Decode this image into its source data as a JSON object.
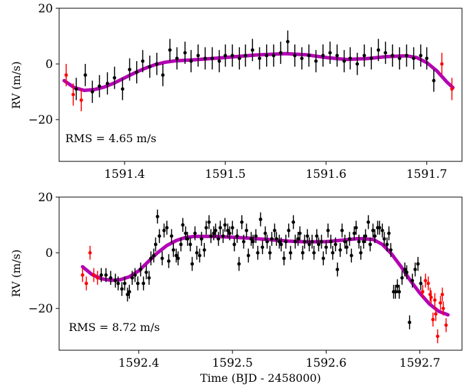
{
  "chart_data": [
    {
      "type": "scatter",
      "ylabel": "RV (m/s)",
      "xlabel": "",
      "xlim": [
        1591.335,
        1591.735
      ],
      "ylim": [
        -35,
        20
      ],
      "xticks": [
        1591.4,
        1591.5,
        1591.6,
        1591.7
      ],
      "xtick_labels": [
        "1591.4",
        "1591.5",
        "1591.6",
        "1591.7"
      ],
      "yticks": [
        -20,
        0,
        20
      ],
      "ytick_labels": [
        "−20",
        "0",
        "20"
      ],
      "annotation": "RMS = 4.65 m/s",
      "colors": {
        "in_transit": "#000000",
        "out_of_transit": "#ff0000",
        "model": "#b300b3"
      },
      "points_black": [
        [
          1591.352,
          -9,
          4
        ],
        [
          1591.361,
          -4,
          4
        ],
        [
          1591.368,
          -10,
          4
        ],
        [
          1591.375,
          -8,
          4
        ],
        [
          1591.383,
          -7,
          4
        ],
        [
          1591.39,
          -5,
          4
        ],
        [
          1591.398,
          -9,
          4
        ],
        [
          1591.405,
          -2,
          4
        ],
        [
          1591.412,
          -3,
          4
        ],
        [
          1591.418,
          1,
          4
        ],
        [
          1591.425,
          -1,
          4
        ],
        [
          1591.432,
          0,
          4
        ],
        [
          1591.438,
          -4,
          4
        ],
        [
          1591.445,
          5,
          4
        ],
        [
          1591.452,
          2,
          4
        ],
        [
          1591.46,
          4,
          4
        ],
        [
          1591.466,
          1,
          4
        ],
        [
          1591.473,
          3,
          4
        ],
        [
          1591.48,
          2,
          4
        ],
        [
          1591.487,
          2,
          4
        ],
        [
          1591.494,
          1,
          4
        ],
        [
          1591.5,
          3,
          4
        ],
        [
          1591.507,
          3,
          4
        ],
        [
          1591.514,
          2,
          4
        ],
        [
          1591.52,
          3,
          4
        ],
        [
          1591.527,
          5,
          4
        ],
        [
          1591.534,
          2,
          4
        ],
        [
          1591.541,
          3,
          4
        ],
        [
          1591.548,
          3,
          4
        ],
        [
          1591.555,
          4,
          4
        ],
        [
          1591.562,
          8,
          4
        ],
        [
          1591.569,
          3,
          4
        ],
        [
          1591.576,
          2,
          4
        ],
        [
          1591.583,
          3,
          4
        ],
        [
          1591.59,
          1,
          4
        ],
        [
          1591.597,
          3,
          4
        ],
        [
          1591.604,
          4,
          4
        ],
        [
          1591.611,
          3,
          4
        ],
        [
          1591.618,
          1,
          4
        ],
        [
          1591.624,
          2,
          4
        ],
        [
          1591.631,
          0,
          4
        ],
        [
          1591.638,
          3,
          4
        ],
        [
          1591.645,
          2,
          4
        ],
        [
          1591.652,
          5,
          4
        ],
        [
          1591.659,
          4,
          4
        ],
        [
          1591.666,
          3,
          4
        ],
        [
          1591.673,
          2,
          4
        ],
        [
          1591.68,
          3,
          4
        ],
        [
          1591.687,
          2,
          4
        ],
        [
          1591.694,
          3,
          4
        ],
        [
          1591.7,
          2,
          4
        ],
        [
          1591.707,
          -6,
          4
        ]
      ],
      "points_red": [
        [
          1591.342,
          -4,
          4
        ],
        [
          1591.349,
          -11,
          4
        ],
        [
          1591.357,
          -13,
          4
        ],
        [
          1591.715,
          0,
          4
        ],
        [
          1591.725,
          -9,
          4
        ]
      ],
      "model_curve": [
        [
          1591.34,
          -6.0
        ],
        [
          1591.35,
          -8.5
        ],
        [
          1591.36,
          -9.5
        ],
        [
          1591.37,
          -9.2
        ],
        [
          1591.38,
          -8.3
        ],
        [
          1591.39,
          -6.8
        ],
        [
          1591.4,
          -5.0
        ],
        [
          1591.41,
          -3.2
        ],
        [
          1591.42,
          -1.6
        ],
        [
          1591.43,
          -0.3
        ],
        [
          1591.44,
          0.6
        ],
        [
          1591.45,
          1.1
        ],
        [
          1591.47,
          1.5
        ],
        [
          1591.5,
          2.3
        ],
        [
          1591.53,
          3.2
        ],
        [
          1591.56,
          3.7
        ],
        [
          1591.58,
          3.3
        ],
        [
          1591.6,
          2.3
        ],
        [
          1591.62,
          1.6
        ],
        [
          1591.64,
          1.9
        ],
        [
          1591.66,
          2.6
        ],
        [
          1591.68,
          2.9
        ],
        [
          1591.69,
          2.3
        ],
        [
          1591.7,
          0.5
        ],
        [
          1591.71,
          -2.5
        ],
        [
          1591.72,
          -6.5
        ],
        [
          1591.726,
          -8.5
        ]
      ]
    },
    {
      "type": "scatter",
      "ylabel": "RV (m/s)",
      "xlabel": "Time (BJD - 2458000)",
      "xlim": [
        1592.315,
        1592.745
      ],
      "ylim": [
        -35,
        20
      ],
      "xticks": [
        1592.4,
        1592.5,
        1592.6,
        1592.7
      ],
      "xtick_labels": [
        "1592.4",
        "1592.5",
        "1592.6",
        "1592.7"
      ],
      "yticks": [
        -20,
        0,
        20
      ],
      "ytick_labels": [
        "−20",
        "0",
        "20"
      ],
      "annotation": "RMS = 8.72 m/s",
      "colors": {
        "in_transit": "#000000",
        "out_of_transit": "#ff0000",
        "model": "#b300b3"
      },
      "points_black": [
        [
          1592.36,
          -8,
          2.5
        ],
        [
          1592.365,
          -8,
          2.5
        ],
        [
          1592.37,
          -9,
          2.5
        ],
        [
          1592.375,
          -10,
          2.5
        ],
        [
          1592.378,
          -11,
          2.5
        ],
        [
          1592.382,
          -13,
          2.5
        ],
        [
          1592.385,
          -11,
          2.5
        ],
        [
          1592.388,
          -15,
          2.5
        ],
        [
          1592.39,
          -14,
          2.5
        ],
        [
          1592.393,
          -9,
          2.5
        ],
        [
          1592.396,
          -8,
          2.5
        ],
        [
          1592.399,
          -11,
          2.5
        ],
        [
          1592.402,
          -6,
          2.5
        ],
        [
          1592.405,
          -11,
          2.5
        ],
        [
          1592.408,
          -7,
          2.5
        ],
        [
          1592.411,
          -9,
          2.5
        ],
        [
          1592.413,
          -2,
          2.5
        ],
        [
          1592.416,
          -1,
          2.5
        ],
        [
          1592.418,
          3,
          2.5
        ],
        [
          1592.42,
          13,
          2.5
        ],
        [
          1592.422,
          6,
          2.5
        ],
        [
          1592.425,
          -2,
          2.5
        ],
        [
          1592.427,
          8,
          2.5
        ],
        [
          1592.43,
          9,
          2.5
        ],
        [
          1592.432,
          -3,
          2.5
        ],
        [
          1592.435,
          6,
          2.5
        ],
        [
          1592.437,
          1,
          2.5
        ],
        [
          1592.44,
          -1,
          2.5
        ],
        [
          1592.442,
          -2,
          2.5
        ],
        [
          1592.445,
          3,
          2.5
        ],
        [
          1592.447,
          10,
          2.5
        ],
        [
          1592.45,
          7,
          2.5
        ],
        [
          1592.452,
          5,
          2.5
        ],
        [
          1592.455,
          3,
          2.5
        ],
        [
          1592.457,
          -4,
          2.5
        ],
        [
          1592.46,
          7,
          2.5
        ],
        [
          1592.462,
          0,
          2.5
        ],
        [
          1592.465,
          -1,
          2.5
        ],
        [
          1592.467,
          5,
          2.5
        ],
        [
          1592.47,
          1,
          2.5
        ],
        [
          1592.472,
          9,
          2.5
        ],
        [
          1592.475,
          11,
          2.5
        ],
        [
          1592.477,
          6,
          2.5
        ],
        [
          1592.48,
          7,
          2.5
        ],
        [
          1592.482,
          8,
          2.5
        ],
        [
          1592.485,
          5,
          2.5
        ],
        [
          1592.487,
          9,
          2.5
        ],
        [
          1592.49,
          6,
          2.5
        ],
        [
          1592.492,
          10,
          2.5
        ],
        [
          1592.495,
          8,
          2.5
        ],
        [
          1592.497,
          7,
          2.5
        ],
        [
          1592.5,
          9,
          2.5
        ],
        [
          1592.502,
          3,
          2.5
        ],
        [
          1592.505,
          6,
          2.5
        ],
        [
          1592.507,
          -4,
          2.5
        ],
        [
          1592.51,
          11,
          2.5
        ],
        [
          1592.512,
          4,
          2.5
        ],
        [
          1592.515,
          8,
          2.5
        ],
        [
          1592.517,
          -1,
          2.5
        ],
        [
          1592.52,
          5,
          2.5
        ],
        [
          1592.522,
          4,
          2.5
        ],
        [
          1592.525,
          6,
          2.5
        ],
        [
          1592.527,
          0,
          2.5
        ],
        [
          1592.53,
          12,
          2.5
        ],
        [
          1592.532,
          2,
          2.5
        ],
        [
          1592.535,
          7,
          2.5
        ],
        [
          1592.537,
          4,
          2.5
        ],
        [
          1592.54,
          0,
          2.5
        ],
        [
          1592.542,
          5,
          2.5
        ],
        [
          1592.545,
          8,
          2.5
        ],
        [
          1592.547,
          5,
          2.5
        ],
        [
          1592.55,
          4,
          2.5
        ],
        [
          1592.552,
          3,
          2.5
        ],
        [
          1592.555,
          -2,
          2.5
        ],
        [
          1592.557,
          4,
          2.5
        ],
        [
          1592.56,
          8,
          2.5
        ],
        [
          1592.562,
          0,
          2.5
        ],
        [
          1592.565,
          11,
          2.5
        ],
        [
          1592.567,
          4,
          2.5
        ],
        [
          1592.57,
          5,
          2.5
        ],
        [
          1592.572,
          7,
          2.5
        ],
        [
          1592.575,
          0,
          2.5
        ],
        [
          1592.577,
          4,
          2.5
        ],
        [
          1592.58,
          6,
          2.5
        ],
        [
          1592.582,
          3,
          2.5
        ],
        [
          1592.585,
          4,
          2.5
        ],
        [
          1592.587,
          0,
          2.5
        ],
        [
          1592.59,
          6,
          2.5
        ],
        [
          1592.592,
          3,
          2.5
        ],
        [
          1592.595,
          4,
          2.5
        ],
        [
          1592.597,
          -2,
          2.5
        ],
        [
          1592.6,
          2,
          2.5
        ],
        [
          1592.602,
          8,
          2.5
        ],
        [
          1592.605,
          4,
          2.5
        ],
        [
          1592.607,
          0,
          2.5
        ],
        [
          1592.61,
          3,
          2.5
        ],
        [
          1592.612,
          -6,
          2.5
        ],
        [
          1592.615,
          1,
          2.5
        ],
        [
          1592.617,
          8,
          2.5
        ],
        [
          1592.62,
          4,
          2.5
        ],
        [
          1592.622,
          2,
          2.5
        ],
        [
          1592.625,
          5,
          2.5
        ],
        [
          1592.627,
          -1,
          2.5
        ],
        [
          1592.63,
          7,
          2.5
        ],
        [
          1592.632,
          9,
          2.5
        ],
        [
          1592.635,
          4,
          2.5
        ],
        [
          1592.637,
          0,
          2.5
        ],
        [
          1592.64,
          4,
          2.5
        ],
        [
          1592.642,
          6,
          2.5
        ],
        [
          1592.645,
          11,
          2.5
        ],
        [
          1592.647,
          3,
          2.5
        ],
        [
          1592.65,
          8,
          2.5
        ],
        [
          1592.652,
          6,
          2.5
        ],
        [
          1592.655,
          9,
          2.5
        ],
        [
          1592.657,
          9,
          2.5
        ],
        [
          1592.66,
          8,
          2.5
        ],
        [
          1592.662,
          5,
          2.5
        ],
        [
          1592.665,
          3,
          2.5
        ],
        [
          1592.667,
          7,
          2.5
        ],
        [
          1592.669,
          1,
          2.5
        ],
        [
          1592.672,
          -14,
          2.5
        ],
        [
          1592.674,
          -14,
          2.5
        ],
        [
          1592.676,
          -12,
          2.5
        ],
        [
          1592.678,
          -14,
          2.5
        ],
        [
          1592.681,
          -9,
          2.5
        ],
        [
          1592.684,
          -6,
          2.5
        ],
        [
          1592.686,
          -7,
          2.5
        ],
        [
          1592.689,
          -25,
          2.5
        ],
        [
          1592.692,
          -10,
          2.5
        ],
        [
          1592.695,
          -6,
          2.5
        ],
        [
          1592.698,
          -4,
          2.5
        ],
        [
          1592.701,
          -11,
          2.5
        ]
      ],
      "points_red": [
        [
          1592.34,
          -8,
          2.5
        ],
        [
          1592.344,
          -11,
          2.5
        ],
        [
          1592.348,
          0,
          2.5
        ],
        [
          1592.352,
          -8,
          2.5
        ],
        [
          1592.356,
          -9,
          2.5
        ],
        [
          1592.703,
          -14,
          2.5
        ],
        [
          1592.706,
          -10,
          2.5
        ],
        [
          1592.709,
          -11,
          2.5
        ],
        [
          1592.712,
          -16,
          2.5
        ],
        [
          1592.714,
          -24,
          2.5
        ],
        [
          1592.717,
          -22,
          2.5
        ],
        [
          1592.719,
          -30,
          2.5
        ],
        [
          1592.722,
          -18,
          2.5
        ],
        [
          1592.725,
          -20,
          2.5
        ],
        [
          1592.728,
          -26,
          2.5
        ],
        [
          1592.711,
          -15,
          2.5
        ],
        [
          1592.716,
          -17,
          2.5
        ],
        [
          1592.724,
          -15,
          2.5
        ]
      ],
      "model_curve": [
        [
          1592.34,
          -5.0
        ],
        [
          1592.35,
          -7.8
        ],
        [
          1592.36,
          -9.3
        ],
        [
          1592.37,
          -9.9
        ],
        [
          1592.38,
          -9.7
        ],
        [
          1592.39,
          -8.6
        ],
        [
          1592.4,
          -6.5
        ],
        [
          1592.41,
          -3.2
        ],
        [
          1592.42,
          0.0
        ],
        [
          1592.43,
          2.6
        ],
        [
          1592.44,
          4.4
        ],
        [
          1592.45,
          5.5
        ],
        [
          1592.46,
          5.9
        ],
        [
          1592.48,
          5.9
        ],
        [
          1592.5,
          5.6
        ],
        [
          1592.52,
          5.2
        ],
        [
          1592.54,
          4.7
        ],
        [
          1592.56,
          4.2
        ],
        [
          1592.58,
          3.9
        ],
        [
          1592.6,
          4.0
        ],
        [
          1592.62,
          4.6
        ],
        [
          1592.635,
          5.1
        ],
        [
          1592.65,
          4.8
        ],
        [
          1592.66,
          3.0
        ],
        [
          1592.67,
          -0.5
        ],
        [
          1592.68,
          -5.0
        ],
        [
          1592.69,
          -10.0
        ],
        [
          1592.7,
          -14.5
        ],
        [
          1592.71,
          -18.3
        ],
        [
          1592.72,
          -21.0
        ],
        [
          1592.73,
          -22.3
        ]
      ]
    }
  ]
}
